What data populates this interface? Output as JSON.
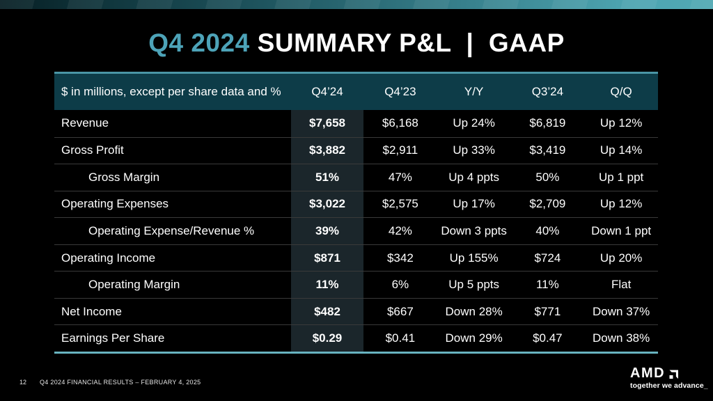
{
  "slide": {
    "title": {
      "accent": "Q4 2024",
      "rest": "SUMMARY P&L  |  GAAP"
    },
    "footer": {
      "page_number": "12",
      "text": "Q4 2024 FINANCIAL RESULTS – FEBRUARY 4, 2025"
    },
    "logo": {
      "wordmark": "AMD",
      "tagline": "together we advance_"
    }
  },
  "table": {
    "columns": [
      "$ in millions, except per share data and %",
      "Q4’24",
      "Q4’23",
      "Y/Y",
      "Q3’24",
      "Q/Q"
    ],
    "rows": [
      {
        "label": "Revenue",
        "indent": false,
        "values": [
          "$7,658",
          "$6,168",
          "Up 24%",
          "$6,819",
          "Up 12%"
        ]
      },
      {
        "label": "Gross Profit",
        "indent": false,
        "values": [
          "$3,882",
          "$2,911",
          "Up 33%",
          "$3,419",
          "Up 14%"
        ]
      },
      {
        "label": "Gross Margin",
        "indent": true,
        "values": [
          "51%",
          "47%",
          "Up 4 ppts",
          "50%",
          "Up 1 ppt"
        ]
      },
      {
        "label": "Operating Expenses",
        "indent": false,
        "values": [
          "$3,022",
          "$2,575",
          "Up 17%",
          "$2,709",
          "Up 12%"
        ]
      },
      {
        "label": "Operating Expense/Revenue %",
        "indent": true,
        "values": [
          "39%",
          "42%",
          "Down 3 ppts",
          "40%",
          "Down 1 ppt"
        ]
      },
      {
        "label": "Operating Income",
        "indent": false,
        "values": [
          "$871",
          "$342",
          "Up 155%",
          "$724",
          "Up 20%"
        ]
      },
      {
        "label": "Operating Margin",
        "indent": true,
        "values": [
          "11%",
          "6%",
          "Up 5 ppts",
          "11%",
          "Flat"
        ]
      },
      {
        "label": "Net Income",
        "indent": false,
        "values": [
          "$482",
          "$667",
          "Down 28%",
          "$771",
          "Down 37%"
        ]
      },
      {
        "label": "Earnings Per Share",
        "indent": false,
        "values": [
          "$0.29",
          "$0.41",
          "Down 29%",
          "$0.47",
          "Down 38%"
        ]
      }
    ]
  },
  "colors": {
    "accent_teal": "#4da3b8",
    "header_bg": "#0d3c48",
    "header_top_border": "#4a96a6",
    "table_bottom_border": "#68b3c0",
    "highlight_column_bg": "#1b262b",
    "row_separator": "#3a3a3a",
    "topbar_gradient_start": "#071f24",
    "topbar_gradient_end": "#51a9b4"
  }
}
